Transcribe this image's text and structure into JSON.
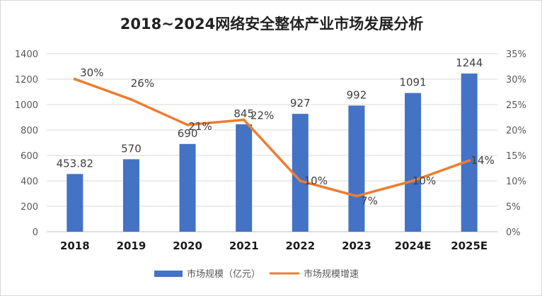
{
  "chart_data": {
    "type": "bar",
    "title": "2018~2024网络安全整体产业市场发展分析",
    "categories": [
      "2018",
      "2019",
      "2020",
      "2021",
      "2022",
      "2023",
      "2024E",
      "2025E"
    ],
    "series": [
      {
        "name": "市场规模（亿元）",
        "type": "bar",
        "axis": "left",
        "color": "#4472C4",
        "values": [
          453.82,
          570,
          690,
          845,
          927,
          992,
          1091,
          1244
        ],
        "labels": [
          "453.82",
          "570",
          "690",
          "845",
          "927",
          "992",
          "1091",
          "1244"
        ]
      },
      {
        "name": "市场规模增速",
        "type": "line",
        "axis": "right",
        "color": "#ED7D31",
        "values": [
          30,
          26,
          21,
          22,
          10,
          7,
          10,
          14
        ],
        "labels": [
          "30%",
          "26%",
          "21%",
          "22%",
          "10%",
          "7%",
          "10%",
          "14%"
        ]
      }
    ],
    "y_left": {
      "min": 0,
      "max": 1400,
      "ticks": [
        "0",
        "200",
        "400",
        "600",
        "800",
        "1000",
        "1200",
        "1400"
      ]
    },
    "y_right": {
      "min": 0,
      "max": 35,
      "ticks": [
        "0%",
        "5%",
        "10%",
        "15%",
        "20%",
        "25%",
        "30%",
        "35%"
      ]
    },
    "grid": true,
    "legend": "bottom"
  }
}
